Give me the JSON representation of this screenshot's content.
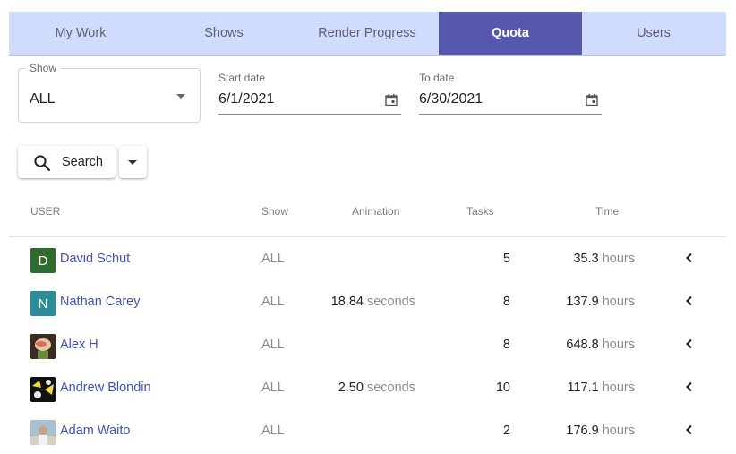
{
  "tabs": [
    {
      "label": "My Work"
    },
    {
      "label": "Shows"
    },
    {
      "label": "Render Progress"
    },
    {
      "label": "Quota",
      "active": true
    },
    {
      "label": "Users"
    }
  ],
  "accent_color": "#5558ad",
  "tab_bar_color": "#cfdcfc",
  "link_color": "#3f51b5",
  "filters": {
    "show": {
      "label": "Show",
      "value": "ALL"
    },
    "start_date": {
      "label": "Start date",
      "value": "6/1/2021"
    },
    "to_date": {
      "label": "To date",
      "value": "6/30/2021"
    }
  },
  "search": {
    "label": "Search",
    "icon": "search-icon"
  },
  "table": {
    "columns": [
      "USER",
      "Show",
      "Animation",
      "Tasks",
      "Time"
    ],
    "rows": [
      {
        "initial": "D",
        "avatar_color": "#2e6b2e",
        "name": "David Schut",
        "show": "ALL",
        "animation_value": "",
        "animation_unit": "",
        "tasks": "5",
        "time_value": "35.3",
        "time_unit": "hours"
      },
      {
        "initial": "N",
        "avatar_color": "#2e8b9a",
        "name": "Nathan Carey",
        "show": "ALL",
        "animation_value": "18.84",
        "animation_unit": "seconds",
        "tasks": "8",
        "time_value": "137.9",
        "time_unit": "hours"
      },
      {
        "initial": "",
        "avatar_color": "#6b4a3a",
        "name": "Alex H",
        "show": "ALL",
        "animation_value": "",
        "animation_unit": "",
        "tasks": "8",
        "time_value": "648.8",
        "time_unit": "hours"
      },
      {
        "initial": "",
        "avatar_color": "#1a1a1a",
        "name": "Andrew Blondin",
        "show": "ALL",
        "animation_value": "2.50",
        "animation_unit": "seconds",
        "tasks": "10",
        "time_value": "117.1",
        "time_unit": "hours"
      },
      {
        "initial": "",
        "avatar_color": "#8fa8b8",
        "name": "Adam Waito",
        "show": "ALL",
        "animation_value": "",
        "animation_unit": "",
        "tasks": "2",
        "time_value": "176.9",
        "time_unit": "hours"
      }
    ]
  }
}
